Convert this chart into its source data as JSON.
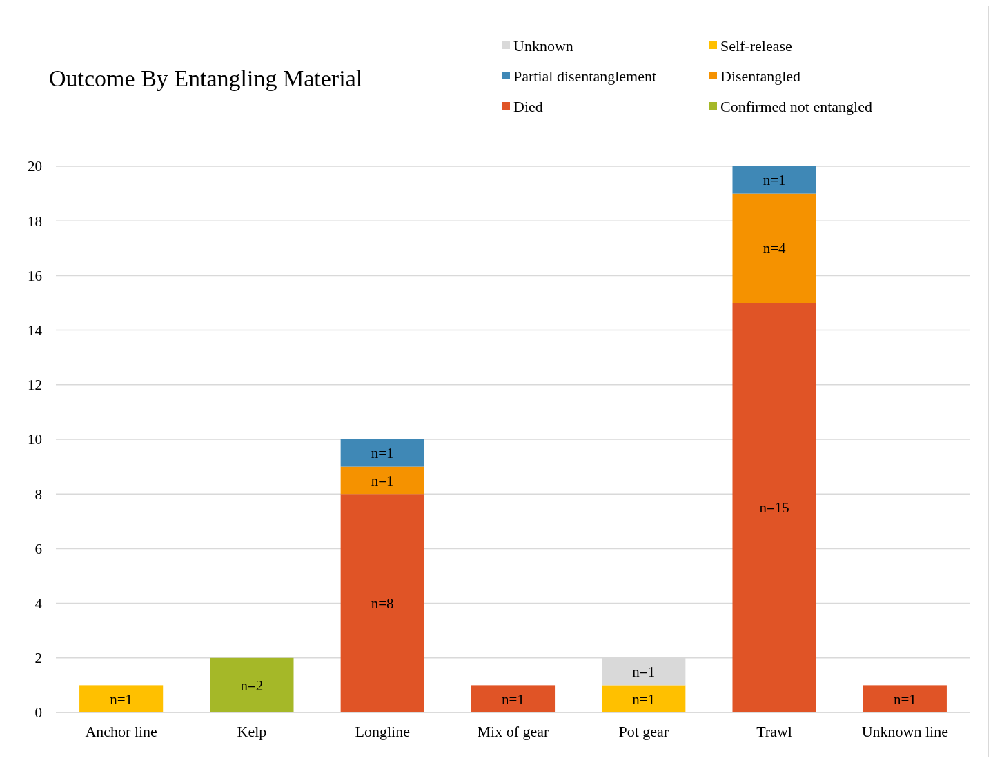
{
  "chart_data": {
    "type": "bar",
    "title": "Outcome By Entangling Material",
    "stacked": true,
    "grid": "y",
    "legend": "top right",
    "categories": [
      "Anchor line",
      "Kelp",
      "Longline",
      "Mix of gear",
      "Pot gear",
      "Trawl",
      "Unknown line"
    ],
    "ylim": [
      0,
      20
    ],
    "yticks": [
      0,
      2,
      4,
      6,
      8,
      10,
      12,
      14,
      16,
      18,
      20
    ],
    "series": [
      {
        "name": "Confirmed not entangled",
        "color": "#a5b828",
        "values": [
          null,
          2,
          null,
          null,
          null,
          null,
          null
        ],
        "value_labels": [
          null,
          "n=2",
          null,
          null,
          null,
          null,
          null
        ]
      },
      {
        "name": "Died",
        "color": "#e05426",
        "values": [
          null,
          null,
          8,
          1,
          null,
          15,
          1
        ],
        "value_labels": [
          null,
          null,
          "n=8",
          "n=1",
          null,
          "n=15",
          "n=1"
        ]
      },
      {
        "name": "Disentangled",
        "color": "#f59200",
        "values": [
          null,
          null,
          1,
          null,
          null,
          4,
          null
        ],
        "value_labels": [
          null,
          null,
          "n=1",
          null,
          null,
          "n=4",
          null
        ]
      },
      {
        "name": "Partial disentanglement",
        "color": "#3f88b6",
        "values": [
          null,
          null,
          1,
          null,
          null,
          1,
          null
        ],
        "value_labels": [
          null,
          null,
          "n=1",
          null,
          null,
          "n=1",
          null
        ]
      },
      {
        "name": "Self-release",
        "color": "#ffc000",
        "values": [
          1,
          null,
          null,
          null,
          1,
          null,
          null
        ],
        "value_labels": [
          "n=1",
          null,
          null,
          null,
          "n=1",
          null,
          null
        ]
      },
      {
        "name": "Unknown",
        "color": "#d9d9d9",
        "values": [
          null,
          null,
          null,
          null,
          1,
          null,
          null
        ],
        "value_labels": [
          null,
          null,
          null,
          null,
          "n=1",
          null,
          null
        ]
      }
    ]
  }
}
